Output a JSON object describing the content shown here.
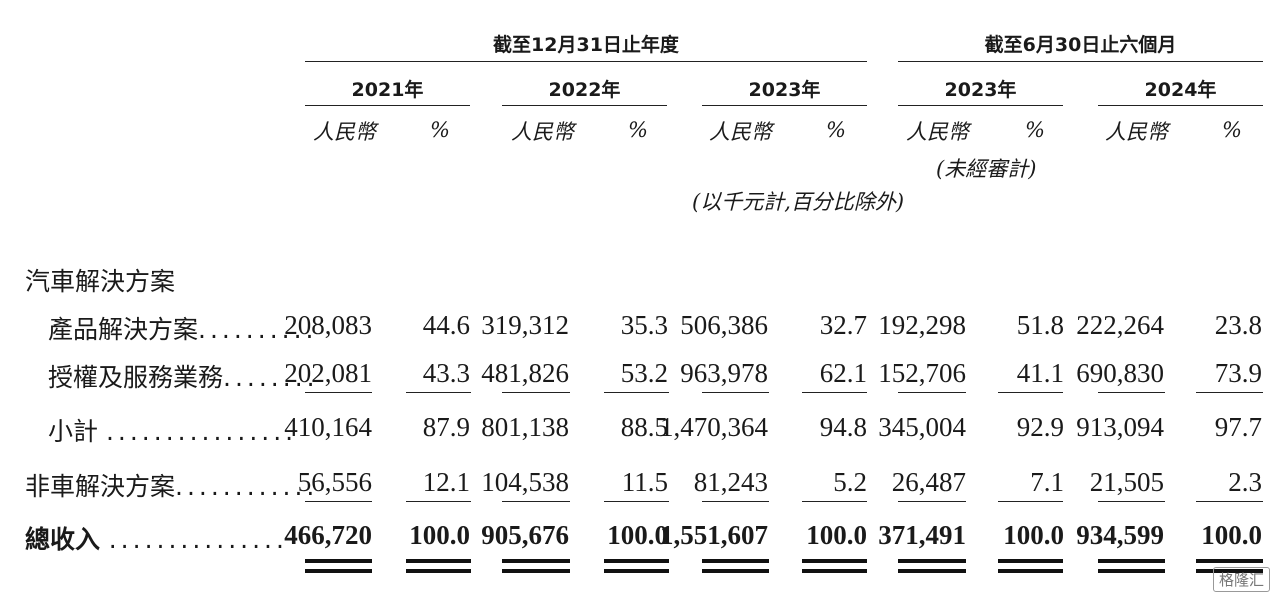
{
  "header": {
    "group_fy": "截至12月31日止年度",
    "group_h1": "截至6月30日止六個月",
    "years": [
      "2021年",
      "2022年",
      "2023年",
      "2023年",
      "2024年"
    ],
    "rmb": "人民幣",
    "pct": "%",
    "unaudited": "(未經審計)",
    "units_note": "(以千元計,百分比除外)"
  },
  "rows": [
    {
      "label": "汽車解決方案",
      "dots": "",
      "values": [],
      "bold": false
    },
    {
      "label": "產品解決方案",
      "dots": "..........",
      "values": [
        "208,083",
        "44.6",
        "319,312",
        "35.3",
        "506,386",
        "32.7",
        "192,298",
        "51.8",
        "222,264",
        "23.8"
      ],
      "bold": false
    },
    {
      "label": "授權及服務業務",
      "dots": "........",
      "values": [
        "202,081",
        "43.3",
        "481,826",
        "53.2",
        "963,978",
        "62.1",
        "152,706",
        "41.1",
        "690,830",
        "73.9"
      ],
      "bold": false
    },
    {
      "label": "小計",
      "dots": "................",
      "values": [
        "410,164",
        "87.9",
        "801,138",
        "88.5",
        "1,470,364",
        "94.8",
        "345,004",
        "92.9",
        "913,094",
        "97.7"
      ],
      "bold": false
    },
    {
      "label": "非車解決方案",
      "dots": "............",
      "values": [
        "56,556",
        "12.1",
        "104,538",
        "11.5",
        "81,243",
        "5.2",
        "26,487",
        "7.1",
        "21,505",
        "2.3"
      ],
      "bold": false
    },
    {
      "label": "總收入",
      "dots": "...............",
      "values": [
        "466,720",
        "100.0",
        "905,676",
        "100.0",
        "1,551,607",
        "100.0",
        "371,491",
        "100.0",
        "934,599",
        "100.0"
      ],
      "bold": true
    }
  ],
  "watermark": "格隆汇"
}
